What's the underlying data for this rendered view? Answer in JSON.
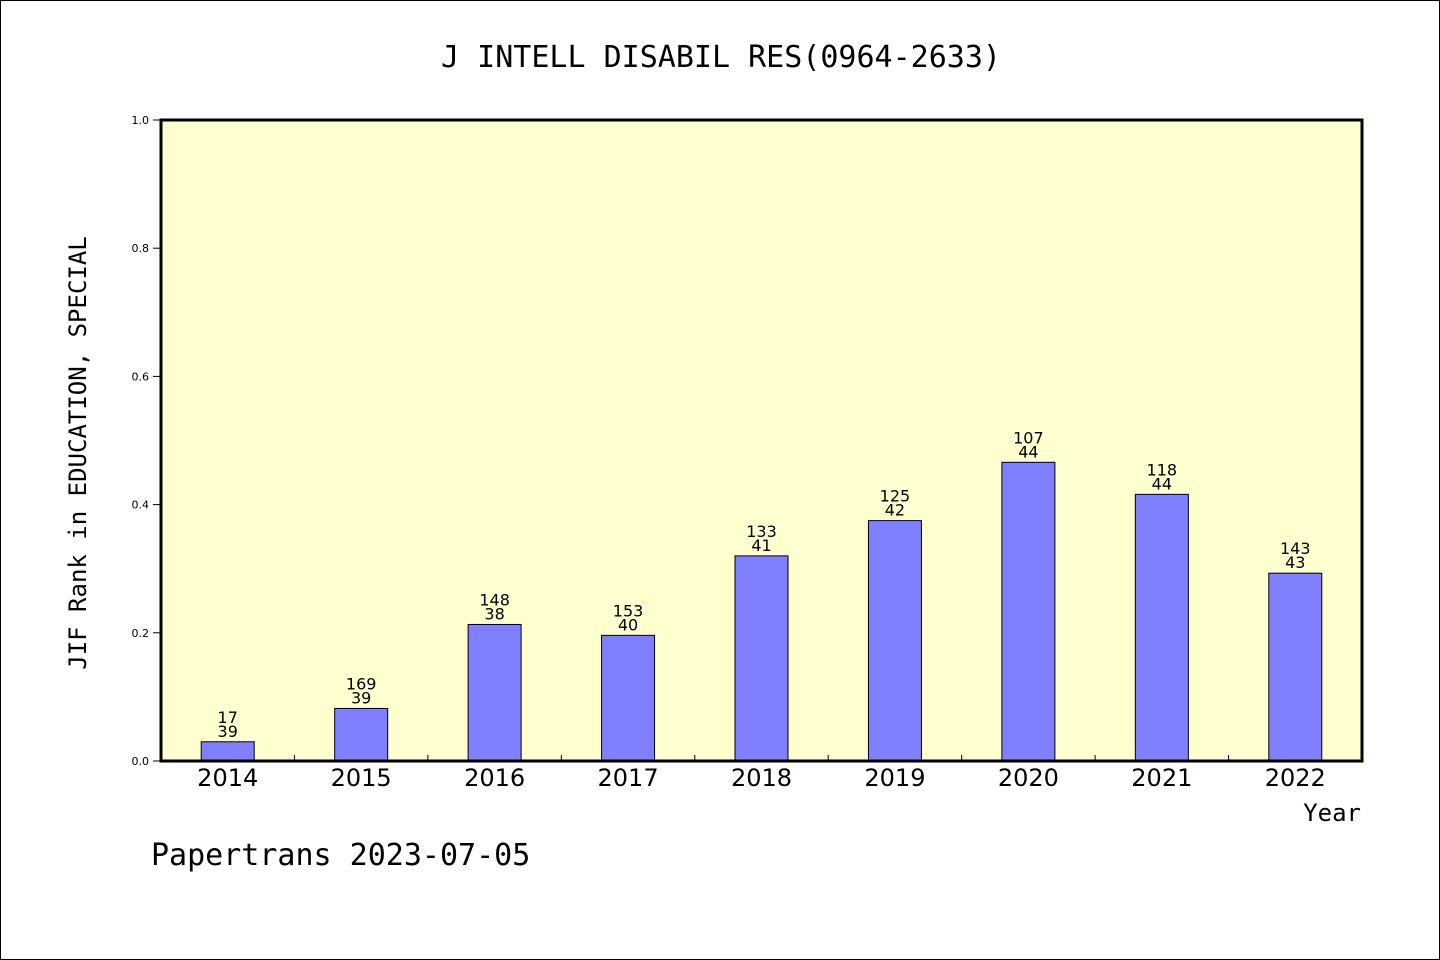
{
  "chart_data": {
    "type": "bar",
    "title": "J INTELL DISABIL RES(0964-2633)",
    "xlabel": "Year",
    "ylabel": "JIF Rank in EDUCATION, SPECIAL",
    "footer": "Papertrans 2023-07-05",
    "ylim": [
      0,
      1.0
    ],
    "yticks": [
      "0.0",
      "0.2",
      "0.4",
      "0.6",
      "0.8",
      "1.0"
    ],
    "categories": [
      "2014",
      "2015",
      "2016",
      "2017",
      "2018",
      "2019",
      "2020",
      "2021",
      "2022"
    ],
    "values": [
      0.03,
      0.082,
      0.213,
      0.196,
      0.32,
      0.375,
      0.466,
      0.416,
      0.293
    ],
    "labels_top": [
      "17",
      "169",
      "148",
      "153",
      "133",
      "125",
      "107",
      "118",
      "143"
    ],
    "labels_bottom": [
      "39",
      "39",
      "38",
      "40",
      "41",
      "42",
      "44",
      "44",
      "43"
    ],
    "grid": false,
    "legend": "none",
    "colors": {
      "plot_bg": "#ffffd0",
      "bar_fill": "#8080ff",
      "bar_stroke": "#000000",
      "text": "#000000"
    }
  }
}
